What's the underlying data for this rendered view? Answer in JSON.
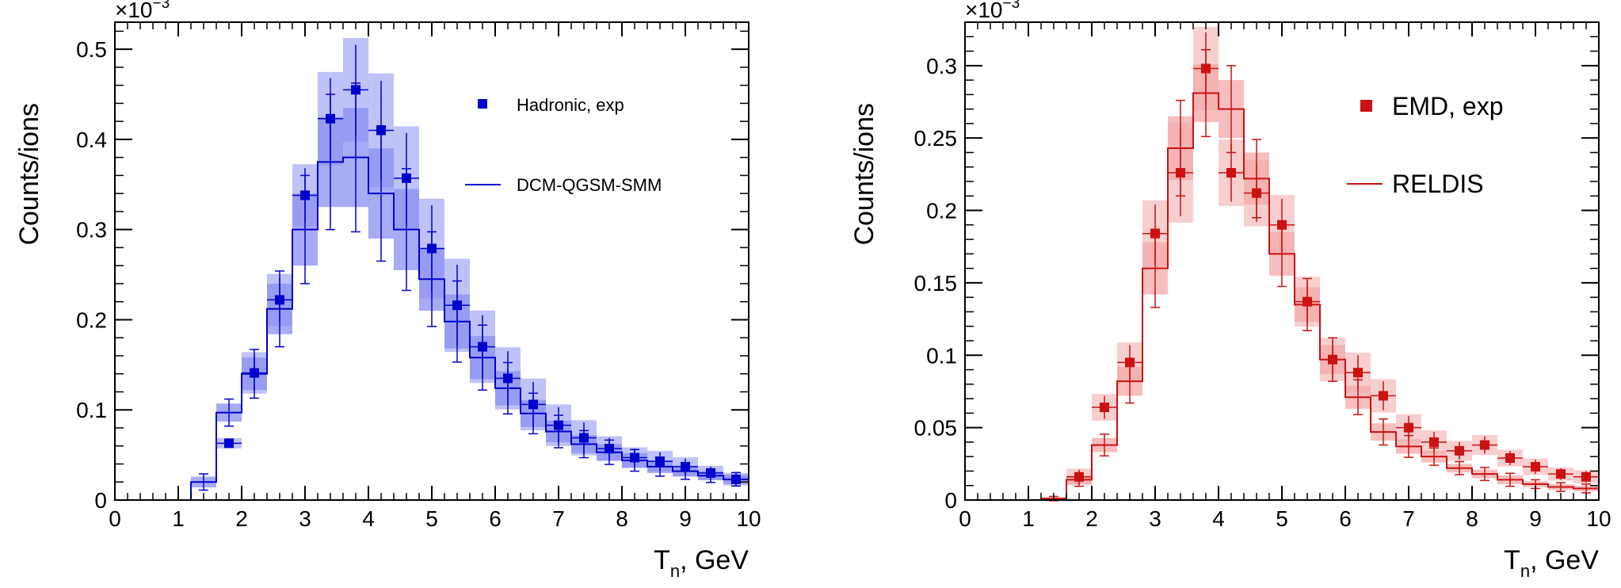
{
  "chart_data": [
    {
      "type": "histogram",
      "color": "#0000cc",
      "band_color": "#8a8ff0",
      "xlabel": "T",
      "xlabel_sub": "n",
      "xlabel_unit": ", GeV",
      "ylabel": "Counts/ions",
      "exponent_text": "×10",
      "exponent_power": "−3",
      "xlim": [
        0,
        10
      ],
      "ylim": [
        0,
        0.53
      ],
      "x_ticks": [
        "0",
        "1",
        "2",
        "3",
        "4",
        "5",
        "6",
        "7",
        "8",
        "9",
        "10"
      ],
      "y_ticks": [
        {
          "v": 0,
          "label": "0"
        },
        {
          "v": 0.1,
          "label": "0.1"
        },
        {
          "v": 0.2,
          "label": "0.2"
        },
        {
          "v": 0.3,
          "label": "0.3"
        },
        {
          "v": 0.4,
          "label": "0.4"
        },
        {
          "v": 0.5,
          "label": "0.5"
        }
      ],
      "legend": {
        "data_label": "Hadronic, exp",
        "model_label": "DCM-QGSM-SMM"
      },
      "model_bins": [
        0,
        0.4,
        0.8,
        1.2,
        1.6,
        2.0,
        2.4,
        2.8,
        3.2,
        3.6,
        4.0,
        4.4,
        4.8,
        5.2,
        5.6,
        6.0,
        6.4,
        6.8,
        7.2,
        7.6,
        8.0,
        8.4,
        8.8,
        9.2,
        9.6,
        10.0
      ],
      "model_values": [
        0,
        0,
        0,
        0.02,
        0.097,
        0.14,
        0.212,
        0.3,
        0.375,
        0.38,
        0.34,
        0.3,
        0.245,
        0.198,
        0.158,
        0.124,
        0.096,
        0.076,
        0.062,
        0.053,
        0.044,
        0.037,
        0.032,
        0.027,
        0.023
      ],
      "model_band_err": [
        0,
        0,
        0,
        0.006,
        0.01,
        0.018,
        0.028,
        0.04,
        0.05,
        0.055,
        0.05,
        0.045,
        0.035,
        0.03,
        0.024,
        0.019,
        0.015,
        0.012,
        0.01,
        0.009,
        0.008,
        0.007,
        0.006,
        0.005,
        0.005
      ],
      "exp_points": [
        {
          "x": 1.8,
          "y": 0.063,
          "e": 0.005
        },
        {
          "x": 2.2,
          "y": 0.141,
          "e": 0.02
        },
        {
          "x": 2.6,
          "y": 0.222,
          "e": 0.025
        },
        {
          "x": 3.0,
          "y": 0.338,
          "e": 0.03
        },
        {
          "x": 3.4,
          "y": 0.423,
          "e": 0.045
        },
        {
          "x": 3.8,
          "y": 0.455,
          "e": 0.05
        },
        {
          "x": 4.2,
          "y": 0.41,
          "e": 0.055
        },
        {
          "x": 4.6,
          "y": 0.357,
          "e": 0.05
        },
        {
          "x": 5.0,
          "y": 0.279,
          "e": 0.048
        },
        {
          "x": 5.4,
          "y": 0.216,
          "e": 0.045
        },
        {
          "x": 5.8,
          "y": 0.17,
          "e": 0.035
        },
        {
          "x": 6.2,
          "y": 0.135,
          "e": 0.03
        },
        {
          "x": 6.6,
          "y": 0.106,
          "e": 0.025
        },
        {
          "x": 7.0,
          "y": 0.083,
          "e": 0.02
        },
        {
          "x": 7.4,
          "y": 0.069,
          "e": 0.017
        },
        {
          "x": 7.8,
          "y": 0.057,
          "e": 0.012
        },
        {
          "x": 8.2,
          "y": 0.047,
          "e": 0.01
        },
        {
          "x": 8.6,
          "y": 0.043,
          "e": 0.01
        },
        {
          "x": 9.0,
          "y": 0.037,
          "e": 0.009
        },
        {
          "x": 9.4,
          "y": 0.03,
          "e": 0.007
        },
        {
          "x": 9.8,
          "y": 0.023,
          "e": 0.006
        }
      ]
    },
    {
      "type": "histogram",
      "color": "#cc1111",
      "band_color": "#f3a8a8",
      "xlabel": "T",
      "xlabel_sub": "n",
      "xlabel_unit": ", GeV",
      "ylabel": "Counts/ions",
      "exponent_text": "×10",
      "exponent_power": "−3",
      "xlim": [
        0,
        10
      ],
      "ylim": [
        0,
        0.33
      ],
      "x_ticks": [
        "0",
        "1",
        "2",
        "3",
        "4",
        "5",
        "6",
        "7",
        "8",
        "9",
        "10"
      ],
      "y_ticks": [
        {
          "v": 0,
          "label": "0"
        },
        {
          "v": 0.05,
          "label": "0.05"
        },
        {
          "v": 0.1,
          "label": "0.1"
        },
        {
          "v": 0.15,
          "label": "0.15"
        },
        {
          "v": 0.2,
          "label": "0.2"
        },
        {
          "v": 0.25,
          "label": "0.25"
        },
        {
          "v": 0.3,
          "label": "0.3"
        }
      ],
      "legend": {
        "data_label": "EMD, exp",
        "model_label": "RELDIS"
      },
      "model_bins": [
        0,
        0.4,
        0.8,
        1.2,
        1.6,
        2.0,
        2.4,
        2.8,
        3.2,
        3.6,
        4.0,
        4.4,
        4.8,
        5.2,
        5.6,
        6.0,
        6.4,
        6.8,
        7.2,
        7.6,
        8.0,
        8.4,
        8.8,
        9.2,
        9.6,
        10.0
      ],
      "model_values": [
        0,
        0,
        0,
        0.001,
        0.014,
        0.038,
        0.082,
        0.16,
        0.243,
        0.281,
        0.27,
        0.222,
        0.17,
        0.135,
        0.097,
        0.071,
        0.047,
        0.037,
        0.03,
        0.022,
        0.018,
        0.014,
        0.011,
        0.009,
        0.008
      ],
      "model_band_err": [
        0,
        0,
        0,
        0.001,
        0.003,
        0.005,
        0.01,
        0.018,
        0.022,
        0.02,
        0.02,
        0.018,
        0.015,
        0.012,
        0.01,
        0.008,
        0.006,
        0.005,
        0.004,
        0.003,
        0.003,
        0.003,
        0.002,
        0.002,
        0.002
      ],
      "exp_points": [
        {
          "x": 1.8,
          "y": 0.016,
          "e": 0.005
        },
        {
          "x": 2.2,
          "y": 0.064,
          "e": 0.008
        },
        {
          "x": 2.6,
          "y": 0.095,
          "e": 0.012
        },
        {
          "x": 3.0,
          "y": 0.184,
          "e": 0.02
        },
        {
          "x": 3.4,
          "y": 0.226,
          "e": 0.03
        },
        {
          "x": 3.8,
          "y": 0.298,
          "e": 0.025
        },
        {
          "x": 4.2,
          "y": 0.226,
          "e": 0.02
        },
        {
          "x": 4.6,
          "y": 0.212,
          "e": 0.02
        },
        {
          "x": 5.0,
          "y": 0.19,
          "e": 0.018
        },
        {
          "x": 5.4,
          "y": 0.137,
          "e": 0.015
        },
        {
          "x": 5.8,
          "y": 0.097,
          "e": 0.013
        },
        {
          "x": 6.2,
          "y": 0.088,
          "e": 0.012
        },
        {
          "x": 6.6,
          "y": 0.072,
          "e": 0.01
        },
        {
          "x": 7.0,
          "y": 0.05,
          "e": 0.008
        },
        {
          "x": 7.4,
          "y": 0.04,
          "e": 0.007
        },
        {
          "x": 7.8,
          "y": 0.034,
          "e": 0.006
        },
        {
          "x": 8.2,
          "y": 0.038,
          "e": 0.006
        },
        {
          "x": 8.6,
          "y": 0.029,
          "e": 0.005
        },
        {
          "x": 9.0,
          "y": 0.023,
          "e": 0.005
        },
        {
          "x": 9.4,
          "y": 0.018,
          "e": 0.004
        },
        {
          "x": 9.8,
          "y": 0.016,
          "e": 0.004
        }
      ]
    }
  ]
}
